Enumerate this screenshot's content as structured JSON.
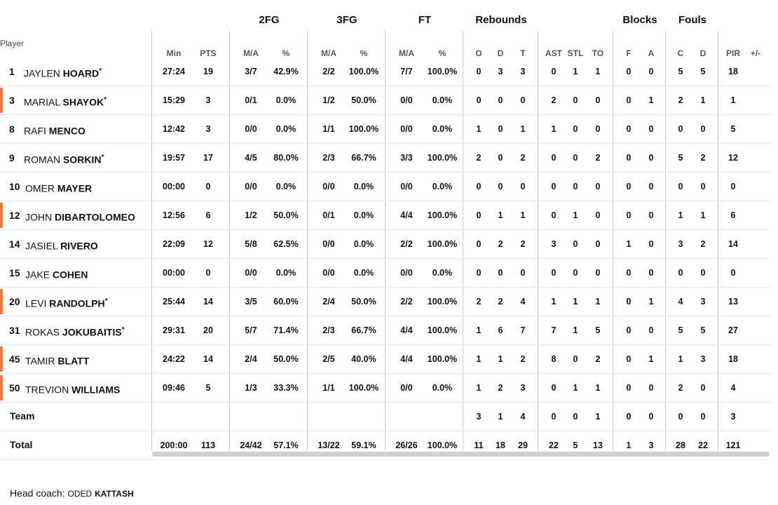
{
  "groups": {
    "fg2": "2FG",
    "fg3": "3FG",
    "ft": "FT",
    "rebounds": "Rebounds",
    "blocks": "Blocks",
    "fouls": "Fouls"
  },
  "player_header": "Player",
  "columns": {
    "min": "Min",
    "pts": "PTS",
    "fg2_ma": "M/A",
    "fg2_pct": "%",
    "fg3_ma": "M/A",
    "fg3_pct": "%",
    "ft_ma": "M/A",
    "ft_pct": "%",
    "o": "O",
    "d": "D",
    "t": "T",
    "ast": "AST",
    "stl": "STL",
    "to": "TO",
    "bf": "F",
    "ba": "A",
    "fc": "C",
    "fd": "D",
    "pir": "PIR",
    "pm": "+/-"
  },
  "players": [
    {
      "num": "1",
      "first": "JAYLEN",
      "last": "HOARD",
      "star": "*",
      "min": "27:24",
      "pts": "19",
      "fg2_ma": "3/7",
      "fg2_pct": "42.9%",
      "fg3_ma": "2/2",
      "fg3_pct": "100.0%",
      "ft_ma": "7/7",
      "ft_pct": "100.0%",
      "o": "0",
      "d": "3",
      "t": "3",
      "ast": "0",
      "stl": "1",
      "to": "1",
      "bf": "0",
      "ba": "0",
      "fc": "5",
      "fd": "5",
      "pir": "18",
      "pm": "",
      "accent": false
    },
    {
      "num": "3",
      "first": "MARIAL",
      "last": "SHAYOK",
      "star": "*",
      "min": "15:29",
      "pts": "3",
      "fg2_ma": "0/1",
      "fg2_pct": "0.0%",
      "fg3_ma": "1/2",
      "fg3_pct": "50.0%",
      "ft_ma": "0/0",
      "ft_pct": "0.0%",
      "o": "0",
      "d": "0",
      "t": "0",
      "ast": "2",
      "stl": "0",
      "to": "0",
      "bf": "0",
      "ba": "1",
      "fc": "2",
      "fd": "1",
      "pir": "1",
      "pm": "",
      "accent": true
    },
    {
      "num": "8",
      "first": "RAFI",
      "last": "MENCO",
      "star": "",
      "min": "12:42",
      "pts": "3",
      "fg2_ma": "0/0",
      "fg2_pct": "0.0%",
      "fg3_ma": "1/1",
      "fg3_pct": "100.0%",
      "ft_ma": "0/0",
      "ft_pct": "0.0%",
      "o": "1",
      "d": "0",
      "t": "1",
      "ast": "1",
      "stl": "0",
      "to": "0",
      "bf": "0",
      "ba": "0",
      "fc": "0",
      "fd": "0",
      "pir": "5",
      "pm": "",
      "accent": false
    },
    {
      "num": "9",
      "first": "ROMAN",
      "last": "SORKIN",
      "star": "*",
      "min": "19:57",
      "pts": "17",
      "fg2_ma": "4/5",
      "fg2_pct": "80.0%",
      "fg3_ma": "2/3",
      "fg3_pct": "66.7%",
      "ft_ma": "3/3",
      "ft_pct": "100.0%",
      "o": "2",
      "d": "0",
      "t": "2",
      "ast": "0",
      "stl": "0",
      "to": "2",
      "bf": "0",
      "ba": "0",
      "fc": "5",
      "fd": "2",
      "pir": "12",
      "pm": "",
      "accent": false
    },
    {
      "num": "10",
      "first": "OMER",
      "last": "MAYER",
      "star": "",
      "min": "00:00",
      "pts": "0",
      "fg2_ma": "0/0",
      "fg2_pct": "0.0%",
      "fg3_ma": "0/0",
      "fg3_pct": "0.0%",
      "ft_ma": "0/0",
      "ft_pct": "0.0%",
      "o": "0",
      "d": "0",
      "t": "0",
      "ast": "0",
      "stl": "0",
      "to": "0",
      "bf": "0",
      "ba": "0",
      "fc": "0",
      "fd": "0",
      "pir": "0",
      "pm": "",
      "accent": false
    },
    {
      "num": "12",
      "first": "JOHN",
      "last": "DIBARTOLOMEO",
      "star": "",
      "min": "12:56",
      "pts": "6",
      "fg2_ma": "1/2",
      "fg2_pct": "50.0%",
      "fg3_ma": "0/1",
      "fg3_pct": "0.0%",
      "ft_ma": "4/4",
      "ft_pct": "100.0%",
      "o": "0",
      "d": "1",
      "t": "1",
      "ast": "0",
      "stl": "1",
      "to": "0",
      "bf": "0",
      "ba": "0",
      "fc": "1",
      "fd": "1",
      "pir": "6",
      "pm": "",
      "accent": true
    },
    {
      "num": "14",
      "first": "JASIEL",
      "last": "RIVERO",
      "star": "",
      "min": "22:09",
      "pts": "12",
      "fg2_ma": "5/8",
      "fg2_pct": "62.5%",
      "fg3_ma": "0/0",
      "fg3_pct": "0.0%",
      "ft_ma": "2/2",
      "ft_pct": "100.0%",
      "o": "0",
      "d": "2",
      "t": "2",
      "ast": "3",
      "stl": "0",
      "to": "0",
      "bf": "1",
      "ba": "0",
      "fc": "3",
      "fd": "2",
      "pir": "14",
      "pm": "",
      "accent": false
    },
    {
      "num": "15",
      "first": "JAKE",
      "last": "COHEN",
      "star": "",
      "min": "00:00",
      "pts": "0",
      "fg2_ma": "0/0",
      "fg2_pct": "0.0%",
      "fg3_ma": "0/0",
      "fg3_pct": "0.0%",
      "ft_ma": "0/0",
      "ft_pct": "0.0%",
      "o": "0",
      "d": "0",
      "t": "0",
      "ast": "0",
      "stl": "0",
      "to": "0",
      "bf": "0",
      "ba": "0",
      "fc": "0",
      "fd": "0",
      "pir": "0",
      "pm": "",
      "accent": false
    },
    {
      "num": "20",
      "first": "LEVI",
      "last": "RANDOLPH",
      "star": "*",
      "min": "25:44",
      "pts": "14",
      "fg2_ma": "3/5",
      "fg2_pct": "60.0%",
      "fg3_ma": "2/4",
      "fg3_pct": "50.0%",
      "ft_ma": "2/2",
      "ft_pct": "100.0%",
      "o": "2",
      "d": "2",
      "t": "4",
      "ast": "1",
      "stl": "1",
      "to": "1",
      "bf": "0",
      "ba": "1",
      "fc": "4",
      "fd": "3",
      "pir": "13",
      "pm": "",
      "accent": true
    },
    {
      "num": "31",
      "first": "ROKAS",
      "last": "JOKUBAITIS",
      "star": "*",
      "min": "29:31",
      "pts": "20",
      "fg2_ma": "5/7",
      "fg2_pct": "71.4%",
      "fg3_ma": "2/3",
      "fg3_pct": "66.7%",
      "ft_ma": "4/4",
      "ft_pct": "100.0%",
      "o": "1",
      "d": "6",
      "t": "7",
      "ast": "7",
      "stl": "1",
      "to": "5",
      "bf": "0",
      "ba": "0",
      "fc": "5",
      "fd": "5",
      "pir": "27",
      "pm": "",
      "accent": false
    },
    {
      "num": "45",
      "first": "TAMIR",
      "last": "BLATT",
      "star": "",
      "min": "24:22",
      "pts": "14",
      "fg2_ma": "2/4",
      "fg2_pct": "50.0%",
      "fg3_ma": "2/5",
      "fg3_pct": "40.0%",
      "ft_ma": "4/4",
      "ft_pct": "100.0%",
      "o": "1",
      "d": "1",
      "t": "2",
      "ast": "8",
      "stl": "0",
      "to": "2",
      "bf": "0",
      "ba": "1",
      "fc": "1",
      "fd": "3",
      "pir": "18",
      "pm": "",
      "accent": true
    },
    {
      "num": "50",
      "first": "TREVION",
      "last": "WILLIAMS",
      "star": "",
      "min": "09:46",
      "pts": "5",
      "fg2_ma": "1/3",
      "fg2_pct": "33.3%",
      "fg3_ma": "1/1",
      "fg3_pct": "100.0%",
      "ft_ma": "0/0",
      "ft_pct": "0.0%",
      "o": "1",
      "d": "2",
      "t": "3",
      "ast": "0",
      "stl": "1",
      "to": "1",
      "bf": "0",
      "ba": "0",
      "fc": "2",
      "fd": "0",
      "pir": "4",
      "pm": "",
      "accent": true
    }
  ],
  "team": {
    "label": "Team",
    "min": "",
    "pts": "",
    "fg2_ma": "",
    "fg2_pct": "",
    "fg3_ma": "",
    "fg3_pct": "",
    "ft_ma": "",
    "ft_pct": "",
    "o": "3",
    "d": "1",
    "t": "4",
    "ast": "0",
    "stl": "0",
    "to": "1",
    "bf": "0",
    "ba": "0",
    "fc": "0",
    "fd": "0",
    "pir": "3",
    "pm": ""
  },
  "total": {
    "label": "Total",
    "min": "200:00",
    "pts": "113",
    "fg2_ma": "24/42",
    "fg2_pct": "57.1%",
    "fg3_ma": "13/22",
    "fg3_pct": "59.1%",
    "ft_ma": "26/26",
    "ft_pct": "100.0%",
    "o": "11",
    "d": "18",
    "t": "29",
    "ast": "22",
    "stl": "5",
    "to": "13",
    "bf": "1",
    "ba": "3",
    "fc": "28",
    "fd": "22",
    "pir": "121",
    "pm": ""
  },
  "coach": {
    "label": "Head coach:",
    "first": "ODED",
    "last": "KATTASH"
  },
  "colors": {
    "accent": "#f07a3c",
    "divider": "#c8c8c8",
    "scrollbar": "#d0d0d0"
  }
}
